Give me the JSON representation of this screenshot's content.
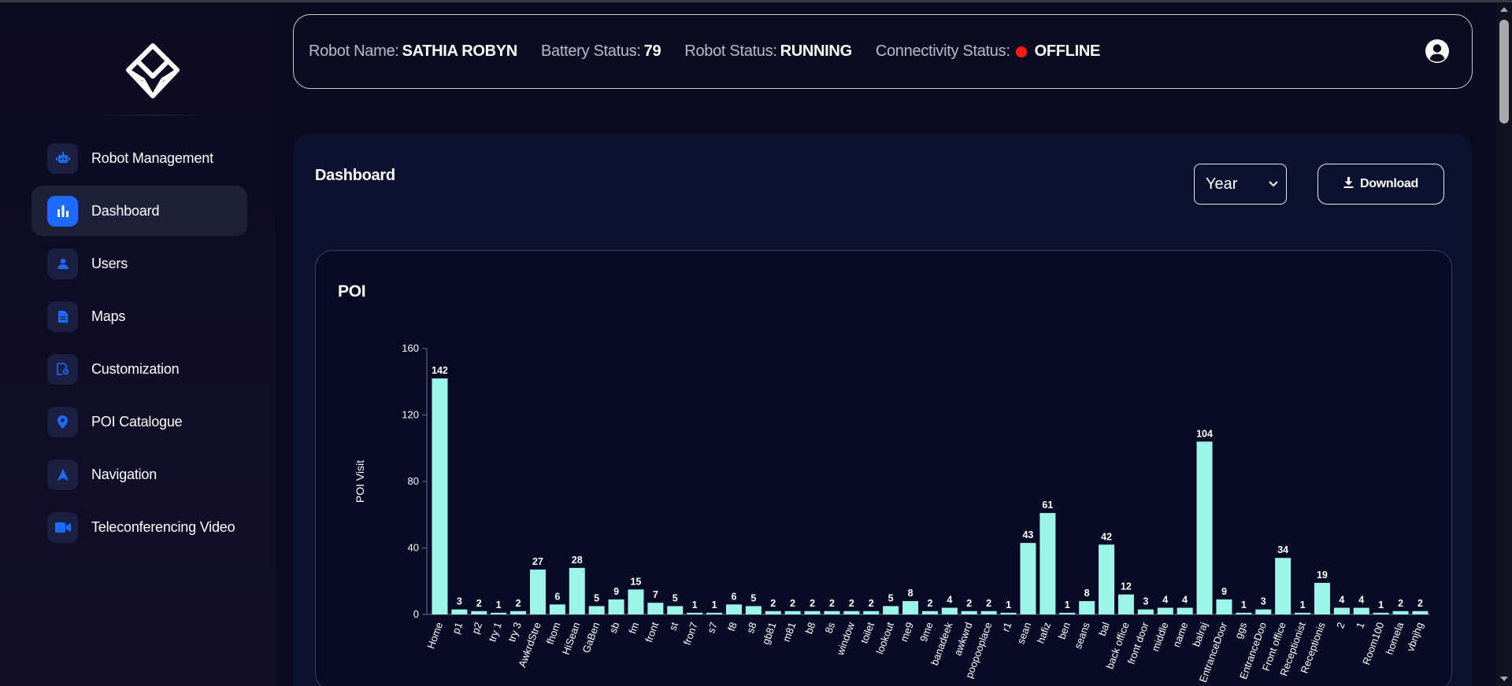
{
  "colors": {
    "accent": "#1d6bff",
    "bar": "#9cf5e8",
    "offline_dot": "#ff1a1a"
  },
  "sidebar": {
    "logo_icon": "diamond-logo-icon",
    "items": [
      {
        "label": "Robot Management",
        "icon": "robot-icon",
        "active": false
      },
      {
        "label": "Dashboard",
        "icon": "bar-chart-icon",
        "active": true
      },
      {
        "label": "Users",
        "icon": "user-icon",
        "active": false
      },
      {
        "label": "Maps",
        "icon": "document-icon",
        "active": false
      },
      {
        "label": "Customization",
        "icon": "customize-icon",
        "active": false
      },
      {
        "label": "POI Catalogue",
        "icon": "location-pin-icon",
        "active": false
      },
      {
        "label": "Navigation",
        "icon": "navigation-arrow-icon",
        "active": false
      },
      {
        "label": "Teleconferencing Video",
        "icon": "video-camera-icon",
        "active": false
      }
    ]
  },
  "header": {
    "robot_name_label": "Robot Name:",
    "robot_name": "SATHIA ROBYN",
    "battery_label": "Battery Status:",
    "battery": "79",
    "robot_status_label": "Robot Status:",
    "robot_status": "RUNNING",
    "connectivity_label": "Connectivity Status:",
    "connectivity": "OFFLINE",
    "user_icon": "user-circle-icon"
  },
  "main": {
    "title": "Dashboard",
    "period_select": {
      "selected": "Year"
    },
    "download_label": "Download"
  },
  "chart_data": {
    "type": "bar",
    "title": "POI",
    "xlabel": "",
    "ylabel": "POI Visit",
    "ylim": [
      0,
      160
    ],
    "yticks": [
      0,
      40,
      80,
      120,
      160
    ],
    "grid": false,
    "categories": [
      "Home",
      "p1",
      "p2",
      "try 1",
      "try 3",
      "AwkrdStre",
      "fhom",
      "HiSean",
      "GaBen",
      "sb",
      "fm",
      "front",
      "st",
      "fron7",
      "s7",
      "f8",
      "s8",
      "gb81",
      "m81",
      "b8",
      "8s",
      "window",
      "toilet",
      "lookout",
      "me9",
      "9me",
      "banadeek",
      "awkwrd",
      "poopooplace",
      "r1",
      "sean",
      "hafiz",
      "ben",
      "seans",
      "bal",
      "back office",
      "front door",
      "middle",
      "name",
      "balraj",
      "EntranceDoor",
      "ggs",
      "EntranceDoo",
      "Front office",
      "Receptionist",
      "Receptionis",
      "2",
      "1",
      "Room100",
      "homela",
      "vbnjhg"
    ],
    "values": [
      142,
      3,
      2,
      1,
      2,
      27,
      6,
      28,
      5,
      9,
      15,
      7,
      5,
      1,
      1,
      6,
      5,
      2,
      2,
      2,
      2,
      2,
      2,
      5,
      8,
      2,
      4,
      2,
      2,
      1,
      43,
      61,
      1,
      8,
      42,
      12,
      3,
      4,
      4,
      104,
      9,
      1,
      3,
      34,
      1,
      19,
      4,
      4,
      1,
      2,
      2
    ]
  }
}
